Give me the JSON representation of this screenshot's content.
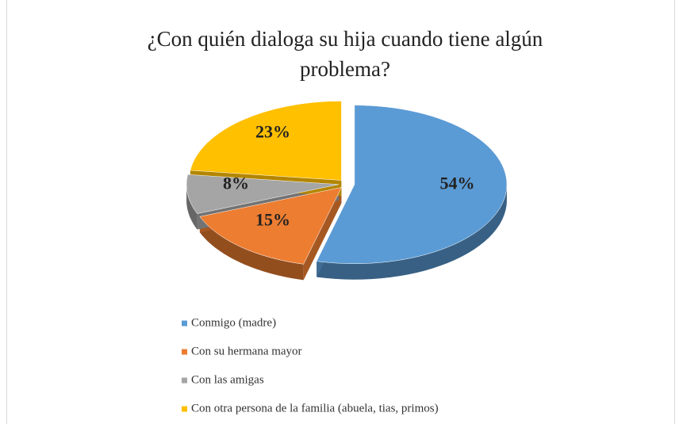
{
  "chart_data": {
    "type": "pie",
    "title": "¿Con quién dialoga su hija cuando tiene algún problema?",
    "categories": [
      "Conmigo (madre)",
      "Con su hermana mayor",
      "Con las amigas",
      "Con otra persona de la familia (abuela, tias, primos)"
    ],
    "values": [
      54,
      15,
      8,
      23
    ],
    "value_labels": [
      "54%",
      "15%",
      "8%",
      "23%"
    ],
    "colors": [
      "#5b9bd5",
      "#ed7d31",
      "#a5a5a5",
      "#ffc000"
    ],
    "legend": "bottom"
  }
}
